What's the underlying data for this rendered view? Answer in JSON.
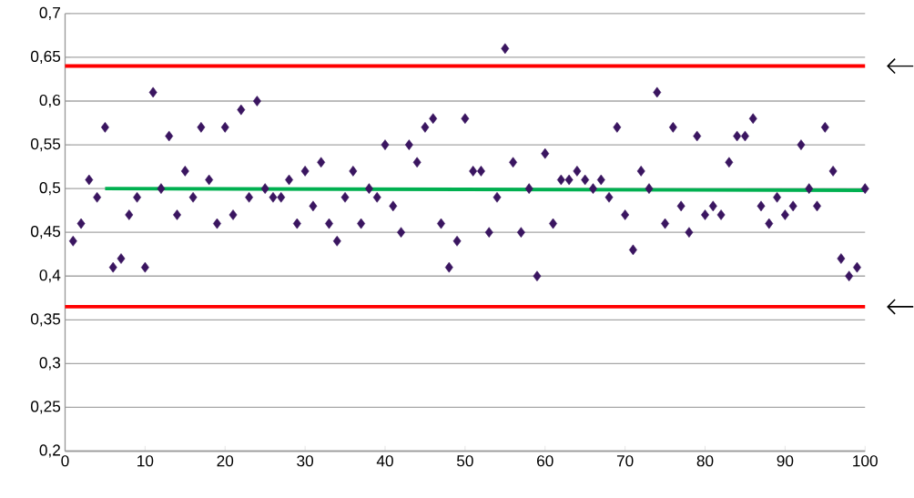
{
  "chart_data": {
    "type": "scatter",
    "grid": "y",
    "xlim": [
      0,
      100
    ],
    "ylim": [
      0.2,
      0.7
    ],
    "xticks": [
      0,
      10,
      20,
      30,
      40,
      50,
      60,
      70,
      80,
      90,
      100
    ],
    "yticks": [
      {
        "value": 0.2,
        "label": "0,2"
      },
      {
        "value": 0.25,
        "label": "0,25"
      },
      {
        "value": 0.3,
        "label": "0,3"
      },
      {
        "value": 0.35,
        "label": "0,35"
      },
      {
        "value": 0.4,
        "label": "0,4"
      },
      {
        "value": 0.45,
        "label": "0,45"
      },
      {
        "value": 0.5,
        "label": "0,5"
      },
      {
        "value": 0.55,
        "label": "0,55"
      },
      {
        "value": 0.6,
        "label": "0,6"
      },
      {
        "value": 0.65,
        "label": "0,65"
      },
      {
        "value": 0.7,
        "label": "0,7"
      }
    ],
    "series": [
      {
        "marker": "diamond",
        "color": "#3a1560",
        "x": [
          1,
          2,
          3,
          4,
          5,
          6,
          7,
          8,
          9,
          10,
          11,
          12,
          13,
          14,
          15,
          16,
          17,
          18,
          19,
          20,
          21,
          22,
          23,
          24,
          25,
          26,
          27,
          28,
          29,
          30,
          31,
          32,
          33,
          34,
          35,
          36,
          37,
          38,
          39,
          40,
          41,
          42,
          43,
          44,
          45,
          46,
          47,
          48,
          49,
          50,
          51,
          52,
          53,
          54,
          55,
          56,
          57,
          58,
          59,
          60,
          61,
          62,
          63,
          64,
          65,
          66,
          67,
          68,
          69,
          70,
          71,
          72,
          73,
          74,
          75,
          76,
          77,
          78,
          79,
          80,
          81,
          82,
          83,
          84,
          85,
          86,
          87,
          88,
          89,
          90,
          91,
          92,
          93,
          94,
          95,
          96,
          97,
          98,
          99,
          100
        ],
        "values": [
          0.44,
          0.46,
          0.51,
          0.49,
          0.57,
          0.41,
          0.42,
          0.47,
          0.49,
          0.41,
          0.61,
          0.5,
          0.56,
          0.47,
          0.52,
          0.49,
          0.57,
          0.51,
          0.46,
          0.57,
          0.47,
          0.59,
          0.49,
          0.6,
          0.5,
          0.49,
          0.49,
          0.51,
          0.46,
          0.52,
          0.48,
          0.53,
          0.46,
          0.44,
          0.49,
          0.52,
          0.46,
          0.5,
          0.49,
          0.55,
          0.48,
          0.45,
          0.55,
          0.53,
          0.57,
          0.58,
          0.46,
          0.41,
          0.44,
          0.58,
          0.52,
          0.52,
          0.45,
          0.49,
          0.66,
          0.53,
          0.45,
          0.5,
          0.4,
          0.54,
          0.46,
          0.51,
          0.51,
          0.52,
          0.51,
          0.5,
          0.51,
          0.49,
          0.57,
          0.47,
          0.43,
          0.52,
          0.5,
          0.61,
          0.46,
          0.57,
          0.48,
          0.45,
          0.56,
          0.47,
          0.48,
          0.47,
          0.53,
          0.56,
          0.56,
          0.58,
          0.48,
          0.46,
          0.49,
          0.47,
          0.48,
          0.55,
          0.5,
          0.48,
          0.57,
          0.52,
          0.42,
          0.4,
          0.41,
          0.5
        ]
      },
      {
        "type": "line",
        "color": "#00b050",
        "x": [
          5,
          100
        ],
        "values": [
          0.5,
          0.498
        ]
      }
    ],
    "ref_lines": [
      {
        "axis": "y",
        "value": 0.64,
        "color": "#ff0000"
      },
      {
        "axis": "y",
        "value": 0.365,
        "color": "#ff0000"
      }
    ]
  }
}
